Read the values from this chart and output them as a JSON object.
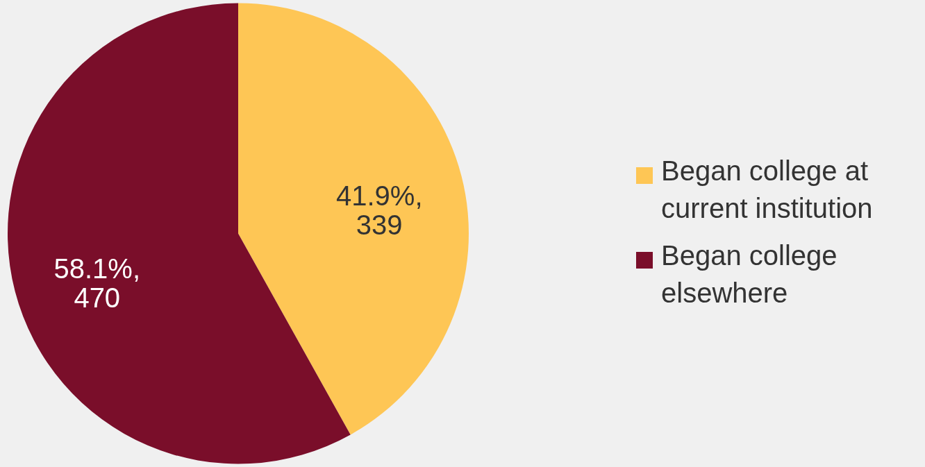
{
  "chart_data": {
    "type": "pie",
    "categories": [
      "Began college at current institution",
      "Began college elsewhere"
    ],
    "values": [
      339,
      470
    ],
    "colors": [
      "#fec655",
      "#7a0e2a"
    ],
    "value_labels": [
      "41.9%,\n339",
      "58.1%,\n470"
    ],
    "legend": "right"
  }
}
